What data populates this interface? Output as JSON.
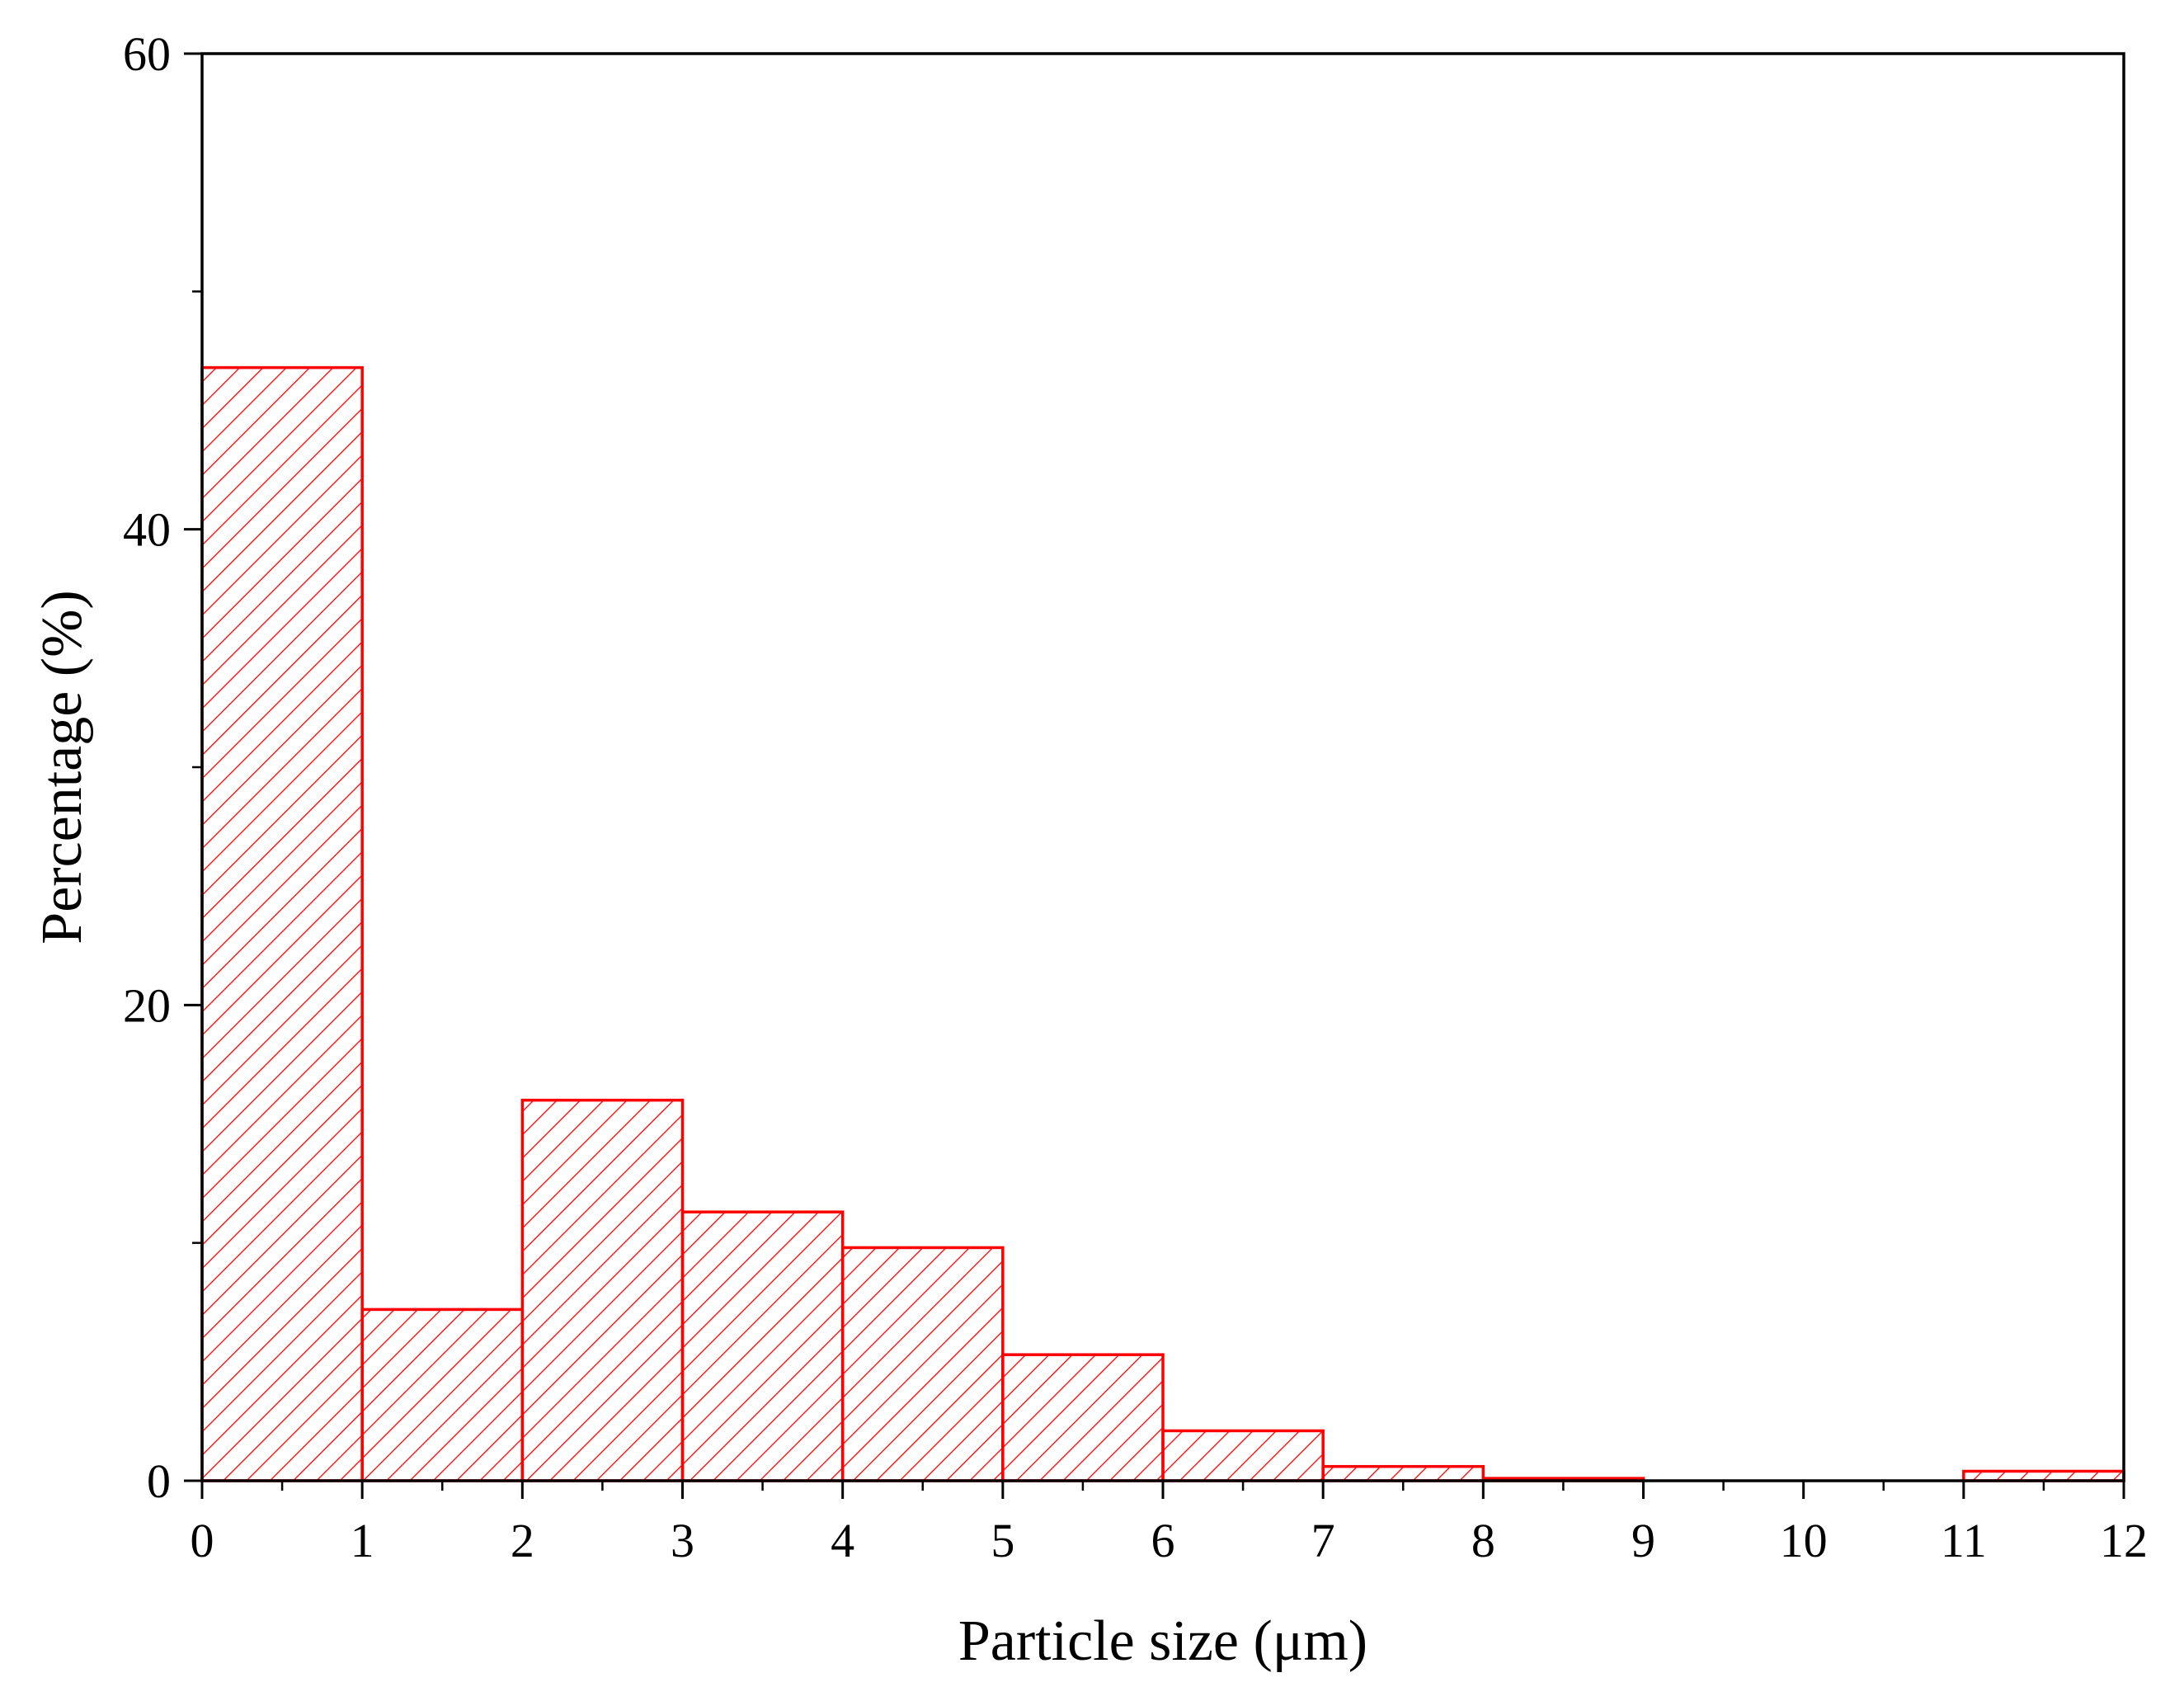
{
  "chart_data": {
    "type": "bar",
    "title": "",
    "xlabel": "Particle size (μm)",
    "ylabel": "Percentage (%)",
    "bin_edges": [
      0,
      1,
      2,
      3,
      4,
      5,
      6,
      7,
      8,
      9,
      10,
      11,
      12
    ],
    "values": [
      46.8,
      7.2,
      16.0,
      11.3,
      9.8,
      5.3,
      2.1,
      0.6,
      0.1,
      0.0,
      0.0,
      0.4
    ],
    "xlim": [
      0,
      12
    ],
    "ylim": [
      0,
      60
    ],
    "x_ticks": [
      "0",
      "1",
      "2",
      "3",
      "4",
      "5",
      "6",
      "7",
      "8",
      "9",
      "10",
      "11",
      "12"
    ],
    "y_ticks": [
      "0",
      "20",
      "40",
      "60"
    ],
    "bar_style": "hatched",
    "color": "#ff0000",
    "grid": false,
    "legend": false
  }
}
